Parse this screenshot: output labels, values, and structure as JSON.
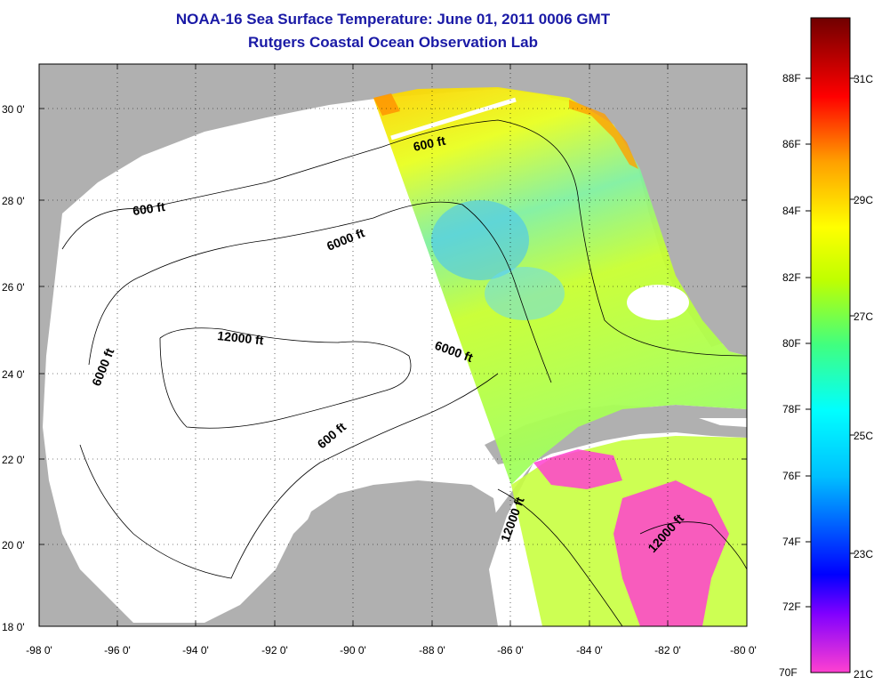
{
  "header": {
    "title": "NOAA-16 Sea Surface Temperature:  June 01, 2011 0006 GMT",
    "subtitle": "Rutgers Coastal Ocean Observation Lab"
  },
  "map": {
    "lon_ticks": [
      "-98 0'",
      "-96 0'",
      "-94 0'",
      "-92 0'",
      "-90 0'",
      "-88 0'",
      "-86 0'",
      "-84 0'",
      "-82 0'",
      "-80 0'"
    ],
    "lat_ticks": [
      "30 0'",
      "28 0'",
      "26 0'",
      "24 0'",
      "22 0'",
      "20 0'",
      "18 0'"
    ],
    "lon_range": [
      -98,
      -80
    ],
    "lat_range": [
      18,
      31.2
    ],
    "contour_labels": [
      "600 ft",
      "600 ft",
      "6000 ft",
      "12000 ft",
      "6000 ft",
      "6000 ft",
      "600 ft",
      "12000 ft",
      "12000 ft"
    ]
  },
  "colorbar": {
    "f_labels": [
      "88F",
      "86F",
      "84F",
      "82F",
      "80F",
      "78F",
      "76F",
      "74F",
      "72F",
      "70F"
    ],
    "c_labels": [
      "31C",
      "29C",
      "27C",
      "25C",
      "23C",
      "21C"
    ],
    "colors": [
      "#ff40d0",
      "#8000ff",
      "#0000ff",
      "#00c0ff",
      "#00ffff",
      "#40ff80",
      "#c0ff00",
      "#ffff00",
      "#ffa000",
      "#ff0000",
      "#a00000",
      "#700000"
    ]
  }
}
